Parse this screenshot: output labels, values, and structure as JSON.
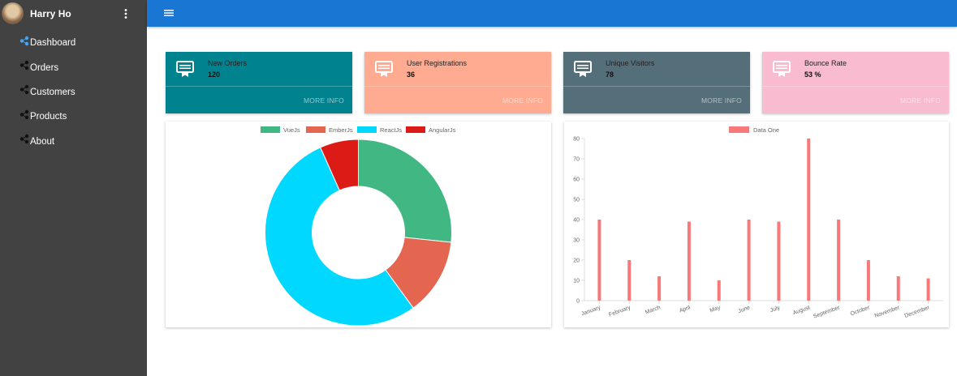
{
  "user": {
    "name": "Harry Ho"
  },
  "colors": {
    "sidebar": "#424242",
    "appbar": "#1976d2",
    "nav_icon_active": "#42a5f5"
  },
  "nav": {
    "items": [
      {
        "label": "Dashboard",
        "icon": "share-icon"
      },
      {
        "label": "Orders",
        "icon": "share-icon"
      },
      {
        "label": "Customers",
        "icon": "share-icon"
      },
      {
        "label": "Products",
        "icon": "share-icon"
      },
      {
        "label": "About",
        "icon": "share-icon"
      }
    ]
  },
  "cards": [
    {
      "title": "New Orders",
      "value": "120",
      "more": "MORE INFO",
      "color": "#00838f",
      "icon": "badge-icon"
    },
    {
      "title": "User Registrations",
      "value": "36",
      "more": "MORE INFO",
      "color": "#ffab91",
      "icon": "badge-icon"
    },
    {
      "title": "Unique Visitors",
      "value": "78",
      "more": "MORE INFO",
      "color": "#546e7a",
      "icon": "badge-icon"
    },
    {
      "title": "Bounce Rate",
      "value": "53 %",
      "more": "MORE INFO",
      "color": "#f8bbd0",
      "icon": "badge-icon"
    }
  ],
  "chart_data": [
    {
      "type": "doughnut",
      "labels": [
        "VueJs",
        "EmberJs",
        "ReactJs",
        "AngularJs"
      ],
      "values": [
        40,
        20,
        80,
        10
      ],
      "colors": [
        "#41b883",
        "#e46651",
        "#00d8ff",
        "#dd1b16"
      ]
    },
    {
      "type": "bar",
      "series": [
        {
          "name": "Data One",
          "color": "#f87979",
          "values": [
            40,
            20,
            12,
            39,
            10,
            40,
            39,
            80,
            40,
            20,
            12,
            11
          ]
        }
      ],
      "categories": [
        "January",
        "February",
        "March",
        "April",
        "May",
        "June",
        "July",
        "August",
        "September",
        "October",
        "November",
        "December"
      ],
      "ylim": [
        0,
        80
      ],
      "yticks": [
        0,
        10,
        20,
        30,
        40,
        50,
        60,
        70,
        80
      ]
    }
  ]
}
